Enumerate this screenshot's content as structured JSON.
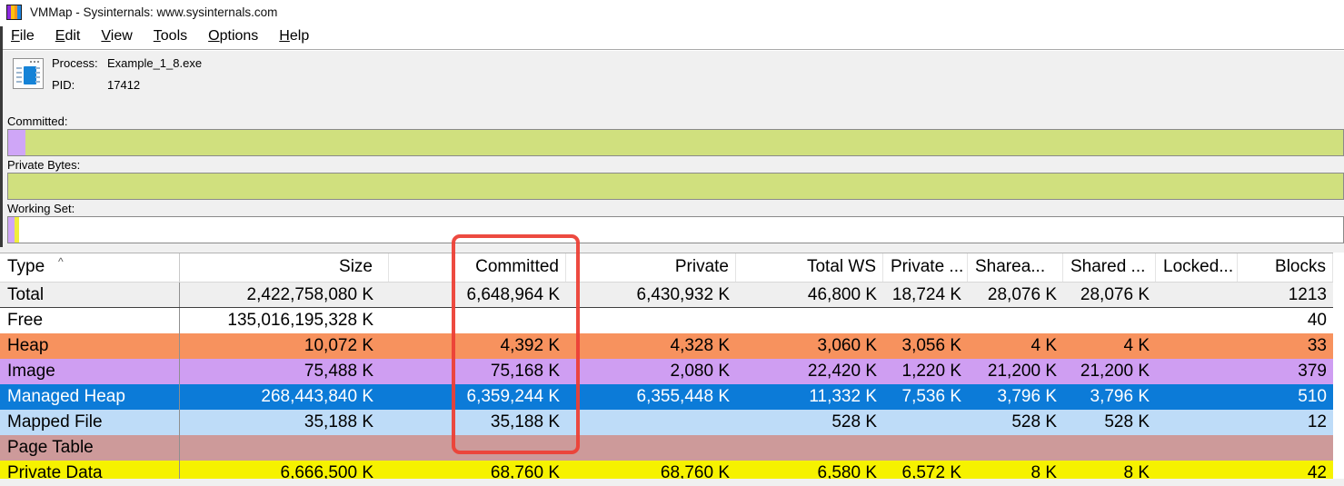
{
  "window": {
    "title": "VMMap - Sysinternals: www.sysinternals.com",
    "icon_stripes": [
      "#8d2ae0",
      "#ffc20e",
      "#f7941d",
      "#1e87e5"
    ]
  },
  "menu": {
    "items": [
      "File",
      "Edit",
      "View",
      "Tools",
      "Options",
      "Help"
    ]
  },
  "toolbar": {
    "process_label": "Process:",
    "process_name": "Example_1_8.exe",
    "pid_label": "PID:",
    "pid_value": "17412",
    "icon_color": "#1583d7"
  },
  "bars": [
    {
      "label": "Committed:",
      "segments": [
        {
          "color": "#cfa6f7",
          "px": 19
        },
        {
          "color": "#d0e07e",
          "px": null
        }
      ]
    },
    {
      "label": "Private Bytes:",
      "segments": [
        {
          "color": "#d0e07e",
          "px": null
        }
      ]
    },
    {
      "label": "Working Set:",
      "segments": [
        {
          "color": "#cfa6f7",
          "px": 7
        },
        {
          "color": "#f0ee3c",
          "px": 5
        },
        {
          "color": "#ffffff",
          "px": null
        }
      ]
    }
  ],
  "table": {
    "sort_indicator": "^",
    "columns": [
      "Type",
      "Size",
      "Committed",
      "Private",
      "Total WS",
      "Private ...",
      "Sharea...",
      "Shared ...",
      "Locked...",
      "Blocks"
    ],
    "rows": [
      {
        "type": "Total",
        "bg": "#efefef",
        "fg": "#000000",
        "values": [
          "2,422,758,080 K",
          "6,648,964 K",
          "6,430,932 K",
          "46,800 K",
          "18,724 K",
          "28,076 K",
          "28,076 K",
          "",
          "1213"
        ]
      },
      {
        "type": "Free",
        "bg": "#ffffff",
        "fg": "#000000",
        "values": [
          "135,016,195,328 K",
          "",
          "",
          "",
          "",
          "",
          "",
          "",
          "40"
        ]
      },
      {
        "type": "Heap",
        "bg": "#f7925e",
        "fg": "#000000",
        "values": [
          "10,072 K",
          "4,392 K",
          "4,328 K",
          "3,060 K",
          "3,056 K",
          "4 K",
          "4 K",
          "",
          "33"
        ]
      },
      {
        "type": "Image",
        "bg": "#cf9ef2",
        "fg": "#000000",
        "values": [
          "75,488 K",
          "75,168 K",
          "2,080 K",
          "22,420 K",
          "1,220 K",
          "21,200 K",
          "21,200 K",
          "",
          "379"
        ]
      },
      {
        "type": "Managed Heap",
        "bg": "#0c7bd8",
        "fg": "#ffffff",
        "values": [
          "268,443,840 K",
          "6,359,244 K",
          "6,355,448 K",
          "11,332 K",
          "7,536 K",
          "3,796 K",
          "3,796 K",
          "",
          "510"
        ]
      },
      {
        "type": "Mapped File",
        "bg": "#bedcf8",
        "fg": "#000000",
        "values": [
          "35,188 K",
          "35,188 K",
          "",
          "528 K",
          "",
          "528 K",
          "528 K",
          "",
          "12"
        ]
      },
      {
        "type": "Page Table",
        "bg": "#cd9a9a",
        "fg": "#000000",
        "values": [
          "",
          "",
          "",
          "",
          "",
          "",
          "",
          "",
          ""
        ]
      },
      {
        "type": "Private Data",
        "bg": "#f6f200",
        "fg": "#000000",
        "values": [
          "6,666,500 K",
          "68,760 K",
          "68,760 K",
          "6,580 K",
          "6,572 K",
          "8 K",
          "8 K",
          "",
          "42"
        ]
      }
    ]
  },
  "annotation": {
    "target": "committed-column",
    "color": "#ec4036"
  }
}
